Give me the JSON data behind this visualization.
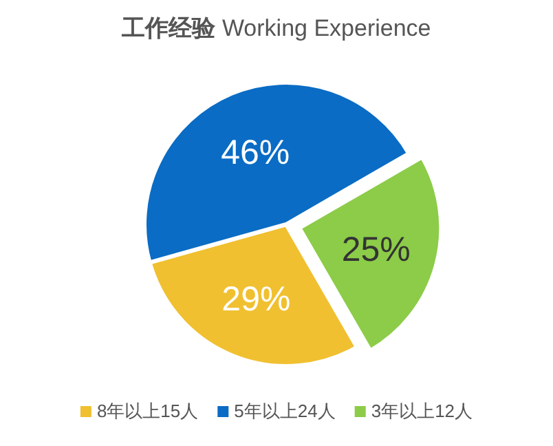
{
  "chart_data": {
    "type": "pie",
    "title": "工作经验 Working Experience",
    "categories": [
      "8年以上15人",
      "5年以上24人",
      "3年以上12人"
    ],
    "values": [
      29,
      46,
      25
    ],
    "colors": [
      "#f0c030",
      "#0a6cc4",
      "#8ccc48"
    ],
    "value_labels": [
      "29%",
      "46%",
      "25%"
    ],
    "legend": "bottom"
  }
}
